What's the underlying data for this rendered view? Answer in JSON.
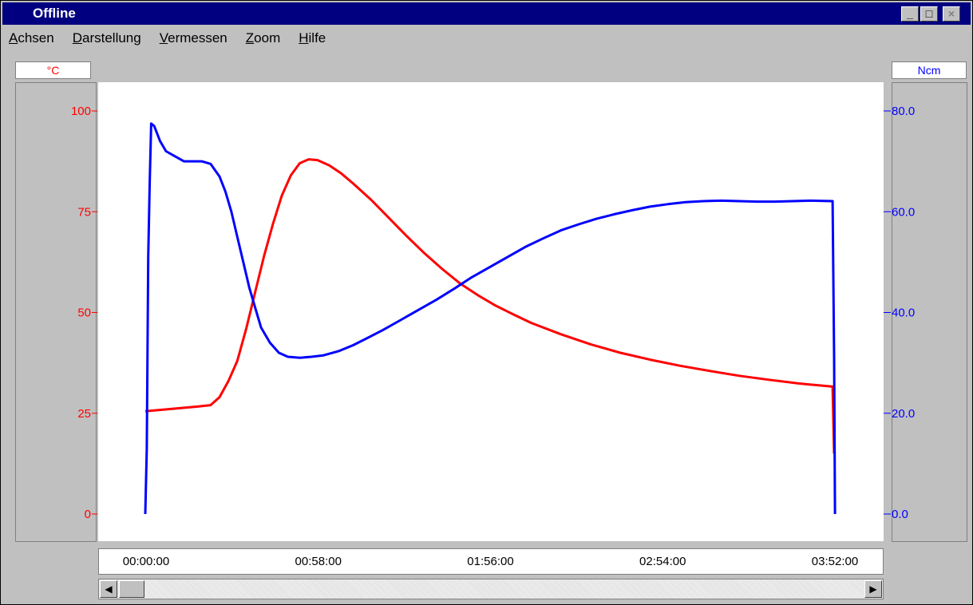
{
  "window": {
    "title": "Offline",
    "buttons": {
      "minimize": "_",
      "maximize": "□",
      "close": "×"
    }
  },
  "menu": [
    {
      "mnemonic": "A",
      "rest": "chsen"
    },
    {
      "mnemonic": "D",
      "rest": "arstellung"
    },
    {
      "mnemonic": "V",
      "rest": "ermessen"
    },
    {
      "mnemonic": "Z",
      "rest": "oom"
    },
    {
      "mnemonic": "H",
      "rest": "ilfe"
    }
  ],
  "colors": {
    "temperature": "#ff0000",
    "torque": "#0000ff"
  },
  "scrollbar": {
    "left_arrow": "◀",
    "right_arrow": "▶"
  },
  "chart_data": {
    "type": "line",
    "left_axis": {
      "unit": "°C",
      "ticks": [
        "0",
        "25",
        "50",
        "75",
        "100"
      ],
      "range": [
        0,
        100
      ]
    },
    "right_axis": {
      "unit": "Ncm",
      "ticks": [
        "0.0",
        "20.0",
        "40.0",
        "60.0",
        "80.0"
      ],
      "range": [
        0,
        80
      ]
    },
    "x_axis": {
      "ticks": [
        "00:00:00",
        "00:58:00",
        "01:56:00",
        "02:54:00",
        "03:52:00"
      ],
      "range_minutes": [
        0,
        232
      ]
    },
    "series": [
      {
        "axis": "left",
        "color": "#ff0000",
        "points": [
          [
            0,
            25.5
          ],
          [
            6,
            25.9
          ],
          [
            12,
            26.3
          ],
          [
            18,
            26.7
          ],
          [
            22,
            27.0
          ],
          [
            25,
            29
          ],
          [
            28,
            33
          ],
          [
            31,
            38
          ],
          [
            34,
            46
          ],
          [
            37,
            55
          ],
          [
            40,
            64
          ],
          [
            43,
            72
          ],
          [
            46,
            79
          ],
          [
            49,
            84
          ],
          [
            52,
            87
          ],
          [
            55,
            88
          ],
          [
            58,
            87.8
          ],
          [
            62,
            86.5
          ],
          [
            66,
            84.5
          ],
          [
            70,
            82
          ],
          [
            76,
            78
          ],
          [
            82,
            73.5
          ],
          [
            88,
            69
          ],
          [
            94,
            64.7
          ],
          [
            100,
            60.8
          ],
          [
            106,
            57.2
          ],
          [
            112,
            54.3
          ],
          [
            118,
            51.7
          ],
          [
            124,
            49.5
          ],
          [
            130,
            47.4
          ],
          [
            140,
            44.6
          ],
          [
            150,
            42.1
          ],
          [
            160,
            40
          ],
          [
            170,
            38.3
          ],
          [
            180,
            36.8
          ],
          [
            190,
            35.5
          ],
          [
            200,
            34.3
          ],
          [
            210,
            33.3
          ],
          [
            220,
            32.4
          ],
          [
            231.5,
            31.6
          ],
          [
            232,
            15
          ]
        ]
      },
      {
        "axis": "right",
        "color": "#0000ff",
        "points": [
          [
            0,
            0
          ],
          [
            0.5,
            13
          ],
          [
            1,
            51
          ],
          [
            1.5,
            66
          ],
          [
            2,
            77.5
          ],
          [
            3,
            77
          ],
          [
            5,
            74
          ],
          [
            7,
            72
          ],
          [
            10,
            71
          ],
          [
            13,
            70
          ],
          [
            16,
            70
          ],
          [
            19,
            70
          ],
          [
            22,
            69.5
          ],
          [
            25,
            67
          ],
          [
            27,
            64
          ],
          [
            29,
            60
          ],
          [
            31,
            55
          ],
          [
            33,
            50
          ],
          [
            35,
            45
          ],
          [
            37,
            41
          ],
          [
            39,
            37
          ],
          [
            42,
            34
          ],
          [
            45,
            32
          ],
          [
            48,
            31.2
          ],
          [
            52,
            31
          ],
          [
            56,
            31.2
          ],
          [
            60,
            31.5
          ],
          [
            65,
            32.3
          ],
          [
            70,
            33.5
          ],
          [
            75,
            35
          ],
          [
            80,
            36.5
          ],
          [
            86,
            38.5
          ],
          [
            92,
            40.5
          ],
          [
            98,
            42.5
          ],
          [
            104,
            44.7
          ],
          [
            110,
            47
          ],
          [
            116,
            49
          ],
          [
            122,
            51
          ],
          [
            128,
            53
          ],
          [
            134,
            54.7
          ],
          [
            140,
            56.3
          ],
          [
            146,
            57.5
          ],
          [
            152,
            58.6
          ],
          [
            158,
            59.5
          ],
          [
            164,
            60.3
          ],
          [
            170,
            61
          ],
          [
            176,
            61.5
          ],
          [
            182,
            61.9
          ],
          [
            188,
            62.1
          ],
          [
            194,
            62.2
          ],
          [
            200,
            62.1
          ],
          [
            206,
            62
          ],
          [
            212,
            62
          ],
          [
            218,
            62.1
          ],
          [
            224,
            62.2
          ],
          [
            231.5,
            62.1
          ],
          [
            232,
            31
          ],
          [
            232.3,
            0
          ]
        ]
      }
    ]
  }
}
